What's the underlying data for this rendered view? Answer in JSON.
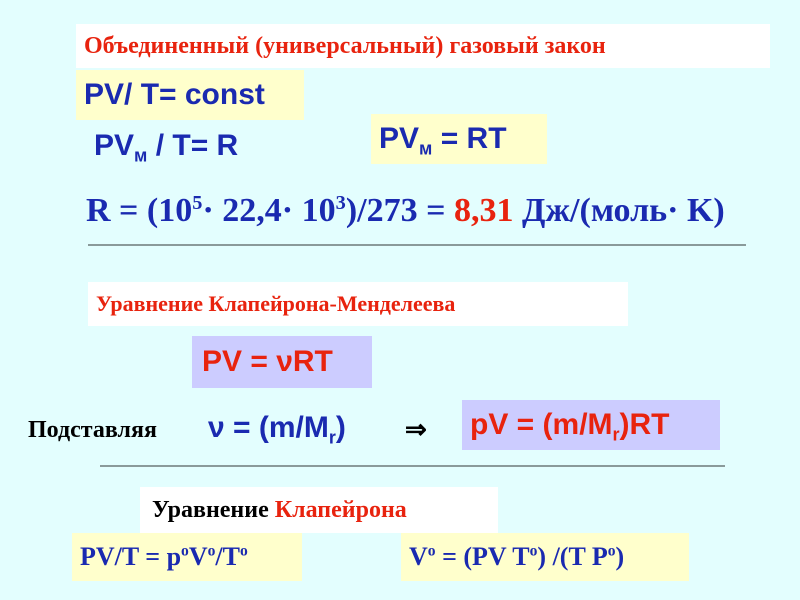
{
  "colors": {
    "background": "#e3fefe",
    "formula": "#1a2ab0",
    "accent": "#e8230e",
    "yellow_box": "#ffffcc",
    "violet_box": "#ccccff"
  },
  "title": "Объединенный (универсальный) газовый закон",
  "f1": "PV/ T= const",
  "f2": {
    "a": "PV",
    "sub": "м",
    "b": " / T= R"
  },
  "f3": {
    "a": "PV",
    "sub": "м",
    "b": " = RT"
  },
  "f4": {
    "a": "R = (10",
    "sup1": "5",
    "b": "· 22,4· 10",
    "sup2": "3",
    "c": ")/273 = ",
    "value": "8,31",
    "d": " Дж/(моль· K)"
  },
  "section1": "Уравнение Клапейрона-Менделеева",
  "f5": "PV = νRT",
  "substitute": {
    "label": "Подставляя",
    "a": "ν = (m/M",
    "sub": "r",
    "b": ")",
    "arrow": "⇒"
  },
  "f6": {
    "a": "pV = (m/M",
    "sub": "r",
    "b": ")RT"
  },
  "section2": {
    "a": "Уравнение ",
    "b": "Клапейрона"
  },
  "f7": {
    "a": "PV/T = p",
    "s1": "o",
    "b": "V",
    "s2": "o",
    "c": "/T",
    "s3": "o"
  },
  "f8": {
    "a": "V",
    "s1": "o",
    "b": " = (PV T",
    "s2": "o",
    "c": ") /(T P",
    "s3": "o",
    "d": ")"
  }
}
